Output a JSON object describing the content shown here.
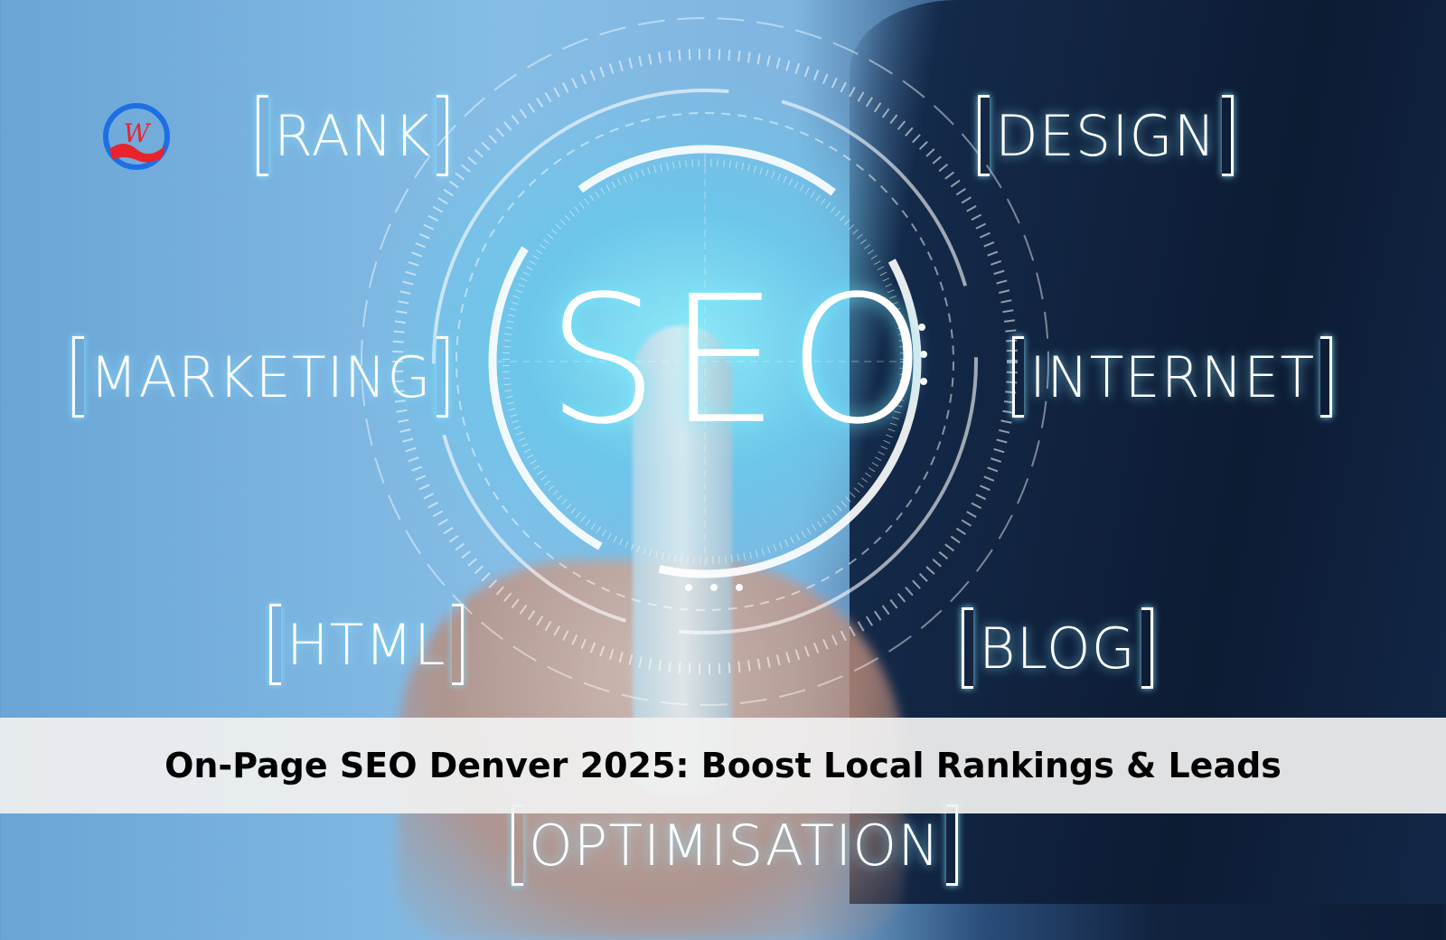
{
  "logo": {
    "letter": "W",
    "colors": {
      "ring": "#1e6fe6",
      "wave": "#e8232d"
    }
  },
  "center_word": "SEO",
  "keywords": {
    "rank": "RANK",
    "design": "DESIGN",
    "marketing": "MARKETING",
    "internet": "INTERNET",
    "html": "HTML",
    "blog": "BLOG",
    "optimisation": "OPTIMISATION"
  },
  "banner": {
    "title": "On-Page SEO Denver 2025: Boost Local Rankings & Leads"
  },
  "colors": {
    "glow": "#8ce6ff",
    "banner_bg": "#f0f0f0",
    "title": "#000000"
  }
}
